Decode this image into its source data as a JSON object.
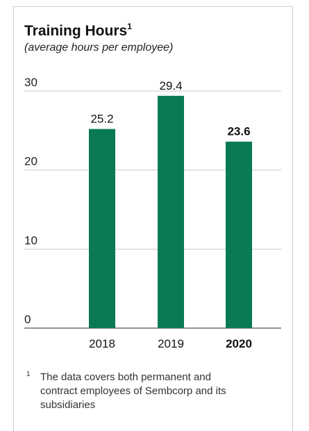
{
  "chart_data": {
    "type": "bar",
    "title": "Training Hours",
    "title_sup": "1",
    "subtitle": "(average hours per employee)",
    "categories": [
      "2018",
      "2019",
      "2020"
    ],
    "values": [
      25.2,
      29.4,
      23.6
    ],
    "value_labels": [
      "25.2",
      "29.4",
      "23.6"
    ],
    "highlight": [
      false,
      false,
      true
    ],
    "yticks": [
      "0",
      "10",
      "20",
      "30"
    ],
    "ylim": [
      0,
      30
    ],
    "grid": true,
    "bar_color": "#097a53",
    "grid_color": "#c8c8c8"
  },
  "footnote": {
    "mark": "1",
    "text": "The data covers both permanent and contract employees of Sembcorp and its subsidiaries"
  }
}
